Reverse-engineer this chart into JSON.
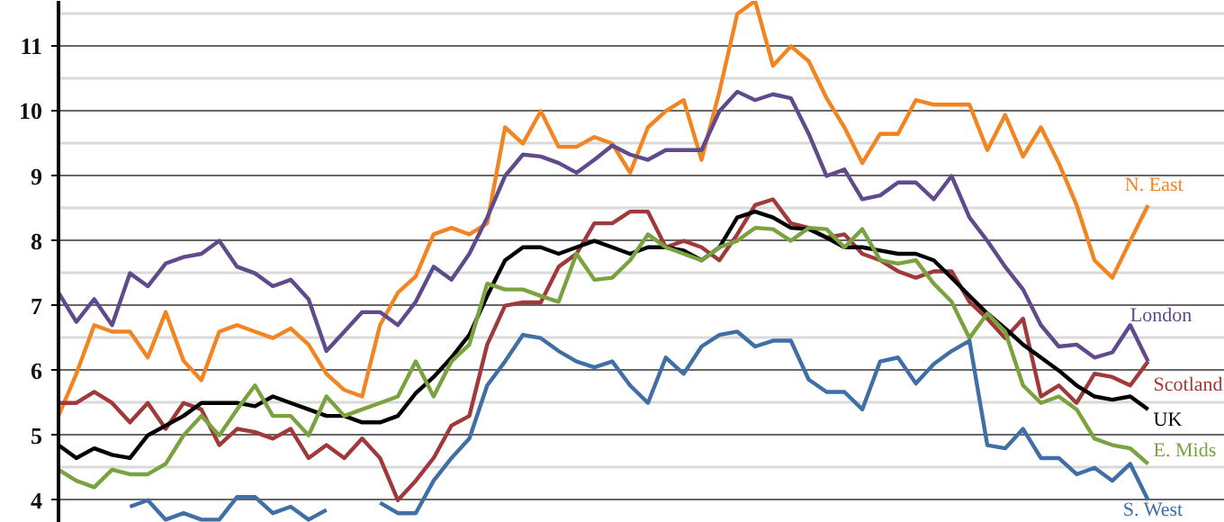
{
  "chart_data": {
    "type": "line",
    "categories": [
      null,
      null,
      null,
      null,
      null,
      null,
      null,
      null,
      null,
      null,
      null,
      null,
      null,
      null,
      null,
      null,
      null,
      null,
      null,
      null,
      null,
      null,
      null,
      null,
      null,
      null,
      null,
      null,
      null,
      null,
      null,
      null,
      null,
      null,
      null,
      null,
      null,
      null,
      null,
      null,
      null,
      null,
      null,
      null,
      null,
      null,
      null,
      null,
      null,
      null,
      null,
      null,
      null,
      null,
      null,
      null,
      null,
      null,
      null,
      null,
      null,
      null
    ],
    "ylim": [
      3.65,
      11.7
    ],
    "yticks": [
      4,
      5,
      6,
      7,
      8,
      9,
      10,
      11
    ],
    "grid": "y",
    "legend": false,
    "line_style": "solid",
    "marker": "none",
    "tick_labels": "y",
    "series": [
      {
        "name": "N. East",
        "color": "#f28522",
        "values": [
          5.3,
          5.95,
          6.7,
          6.6,
          6.6,
          6.2,
          6.9,
          6.15,
          5.85,
          6.6,
          6.7,
          6.6,
          6.5,
          6.65,
          6.4,
          5.95,
          5.7,
          5.6,
          6.7,
          7.2,
          7.45,
          8.1,
          8.2,
          8.1,
          8.27,
          9.75,
          9.5,
          10.0,
          9.45,
          9.45,
          9.6,
          9.5,
          9.05,
          9.75,
          10.0,
          10.17,
          9.25,
          10.3,
          11.5,
          11.7,
          10.7,
          11.0,
          10.77,
          10.2,
          9.75,
          9.2,
          9.65,
          9.65,
          10.17,
          10.1,
          10.1,
          10.1,
          9.4,
          9.94,
          9.3,
          9.75,
          9.2,
          8.55,
          7.7,
          7.43,
          8.0,
          8.55
        ]
      },
      {
        "name": "London",
        "color": "#5f4b8b",
        "values": [
          7.2,
          6.75,
          7.1,
          6.7,
          7.5,
          7.3,
          7.65,
          7.75,
          7.8,
          8.0,
          7.6,
          7.5,
          7.3,
          7.4,
          7.1,
          6.3,
          6.6,
          6.9,
          6.9,
          6.7,
          7.06,
          7.6,
          7.4,
          7.8,
          8.36,
          9.0,
          9.33,
          9.3,
          9.2,
          9.05,
          9.25,
          9.47,
          9.33,
          9.25,
          9.4,
          9.4,
          9.4,
          10.0,
          10.3,
          10.17,
          10.26,
          10.2,
          9.65,
          9.0,
          9.1,
          8.64,
          8.7,
          8.9,
          8.9,
          8.64,
          9.0,
          8.36,
          8.0,
          7.6,
          7.25,
          6.7,
          6.37,
          6.4,
          6.2,
          6.28,
          6.7,
          6.14
        ]
      },
      {
        "name": "Scotland",
        "color": "#a0393a",
        "values": [
          5.5,
          5.5,
          5.67,
          5.5,
          5.2,
          5.5,
          5.1,
          5.5,
          5.4,
          4.85,
          5.1,
          5.05,
          4.95,
          5.1,
          4.65,
          4.85,
          4.65,
          4.95,
          4.65,
          4.0,
          4.3,
          4.65,
          5.15,
          5.3,
          6.4,
          7.0,
          7.05,
          7.05,
          7.6,
          7.8,
          8.27,
          8.27,
          8.45,
          8.45,
          7.9,
          8.0,
          7.9,
          7.7,
          8.1,
          8.55,
          8.64,
          8.27,
          8.2,
          8.05,
          8.1,
          7.8,
          7.7,
          7.53,
          7.43,
          7.53,
          7.53,
          7.06,
          6.8,
          6.5,
          6.8,
          5.6,
          5.77,
          5.5,
          5.95,
          5.9,
          5.77,
          6.14
        ]
      },
      {
        "name": "UK",
        "color": "#000000",
        "values": [
          4.85,
          4.65,
          4.8,
          4.7,
          4.65,
          5.0,
          5.15,
          5.3,
          5.5,
          5.5,
          5.5,
          5.45,
          5.6,
          5.5,
          5.4,
          5.3,
          5.3,
          5.2,
          5.2,
          5.3,
          5.65,
          5.9,
          6.2,
          6.55,
          7.15,
          7.7,
          7.9,
          7.9,
          7.8,
          7.9,
          8.0,
          7.9,
          7.8,
          7.9,
          7.9,
          7.85,
          7.7,
          7.9,
          8.36,
          8.45,
          8.36,
          8.2,
          8.18,
          8.05,
          7.9,
          7.9,
          7.85,
          7.8,
          7.8,
          7.7,
          7.43,
          7.15,
          6.88,
          6.65,
          6.4,
          6.2,
          6.0,
          5.77,
          5.6,
          5.55,
          5.6,
          5.4
        ]
      },
      {
        "name": "E. Mids",
        "color": "#7aa23f",
        "values": [
          4.47,
          4.3,
          4.2,
          4.47,
          4.4,
          4.4,
          4.56,
          5.0,
          5.3,
          5.0,
          5.4,
          5.77,
          5.3,
          5.3,
          5.0,
          5.6,
          5.3,
          5.4,
          5.5,
          5.6,
          6.14,
          5.6,
          6.14,
          6.4,
          7.34,
          7.25,
          7.25,
          7.15,
          7.06,
          7.8,
          7.4,
          7.43,
          7.7,
          8.1,
          7.9,
          7.8,
          7.7,
          7.9,
          8.0,
          8.2,
          8.18,
          8.0,
          8.2,
          8.18,
          7.9,
          8.18,
          7.7,
          7.65,
          7.7,
          7.34,
          7.06,
          6.5,
          6.88,
          6.6,
          5.77,
          5.5,
          5.6,
          5.4,
          4.95,
          4.85,
          4.8,
          4.56
        ]
      },
      {
        "name": "S. West",
        "color": "#3f6fa5",
        "values": [
          null,
          null,
          null,
          null,
          3.9,
          4.0,
          3.7,
          3.8,
          3.7,
          3.7,
          4.05,
          4.05,
          3.8,
          3.9,
          3.7,
          3.85,
          null,
          null,
          3.96,
          3.8,
          3.8,
          4.3,
          4.65,
          4.95,
          5.77,
          6.14,
          6.55,
          6.5,
          6.3,
          6.14,
          6.05,
          6.14,
          5.77,
          5.5,
          6.2,
          5.95,
          6.37,
          6.55,
          6.6,
          6.37,
          6.46,
          6.46,
          5.86,
          5.67,
          5.67,
          5.4,
          6.14,
          6.2,
          5.8,
          6.1,
          6.3,
          6.46,
          4.85,
          4.8,
          5.1,
          4.65,
          4.65,
          4.4,
          4.5,
          4.3,
          4.56,
          4.0
        ]
      }
    ]
  }
}
